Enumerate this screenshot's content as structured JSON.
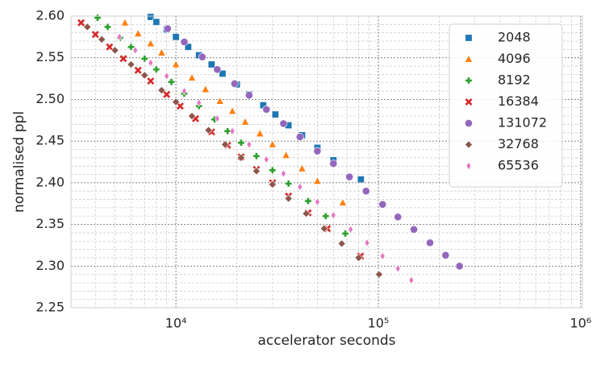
{
  "chart_data": {
    "type": "scatter",
    "xlabel": "accelerator seconds",
    "ylabel": "normalised ppl",
    "xscale": "log",
    "grid": true,
    "legend": "upper right",
    "xlim": [
      3030,
      1020000
    ],
    "xticks": [
      {
        "value": 10000,
        "label": "10⁴"
      },
      {
        "value": 100000,
        "label": "10⁵"
      },
      {
        "value": 1000000,
        "label": "10⁶"
      }
    ],
    "ylim": [
      2.25,
      2.6
    ],
    "yticks": [
      2.25,
      {
        "value": 2.3,
        "label": "2.30"
      },
      2.35,
      {
        "value": 2.4,
        "label": "2.40"
      },
      2.45,
      {
        "value": 2.5,
        "label": "2.50"
      },
      2.55,
      {
        "value": 2.6,
        "label": "2.60"
      }
    ],
    "series": [
      {
        "name": "2048",
        "color": "#1f77b4",
        "marker": "square",
        "x": [
          7500,
          8000,
          9000,
          10000,
          11500,
          13000,
          15000,
          17000,
          20000,
          23000,
          27000,
          31000,
          36000,
          42000,
          50000,
          60000,
          82000
        ],
        "values": [
          2.599,
          2.593,
          2.584,
          2.575,
          2.563,
          2.553,
          2.542,
          2.531,
          2.518,
          2.506,
          2.493,
          2.482,
          2.469,
          2.457,
          2.442,
          2.427,
          2.404
        ]
      },
      {
        "name": "4096",
        "color": "#ff7f0e",
        "marker": "triangle",
        "x": [
          5600,
          6500,
          7500,
          8500,
          10000,
          12000,
          14000,
          16500,
          19000,
          22000,
          26000,
          30000,
          35000,
          42000,
          50000,
          66800
        ],
        "values": [
          2.592,
          2.579,
          2.567,
          2.556,
          2.542,
          2.526,
          2.512,
          2.498,
          2.486,
          2.473,
          2.459,
          2.446,
          2.433,
          2.417,
          2.402,
          2.376
        ]
      },
      {
        "name": "8192",
        "color": "#2ca02c",
        "marker": "plus",
        "x": [
          4100,
          4600,
          5300,
          6000,
          7000,
          8000,
          9500,
          11000,
          13000,
          15500,
          18000,
          21000,
          25000,
          30000,
          36000,
          45000,
          55000,
          68700
        ],
        "values": [
          2.598,
          2.587,
          2.574,
          2.563,
          2.549,
          2.536,
          2.521,
          2.507,
          2.492,
          2.476,
          2.462,
          2.448,
          2.432,
          2.415,
          2.399,
          2.378,
          2.36,
          2.339
        ]
      },
      {
        "name": "16384",
        "color": "#d62728",
        "marker": "x",
        "x": [
          3400,
          4000,
          4700,
          5500,
          6500,
          7500,
          9000,
          10500,
          12500,
          15000,
          18000,
          21000,
          25000,
          30000,
          36000,
          45000,
          56000,
          81700
        ],
        "values": [
          2.592,
          2.578,
          2.563,
          2.549,
          2.535,
          2.522,
          2.506,
          2.492,
          2.477,
          2.461,
          2.445,
          2.431,
          2.416,
          2.4,
          2.384,
          2.364,
          2.345,
          2.312
        ]
      },
      {
        "name": "131072",
        "color": "#9467bd",
        "marker": "circle",
        "x": [
          9100,
          11000,
          13500,
          16000,
          19500,
          23000,
          28000,
          34000,
          41000,
          50000,
          60000,
          72000,
          87000,
          105000,
          125000,
          150000,
          180000,
          215000,
          252000
        ],
        "values": [
          2.585,
          2.569,
          2.551,
          2.536,
          2.519,
          2.505,
          2.488,
          2.471,
          2.455,
          2.438,
          2.423,
          2.407,
          2.39,
          2.374,
          2.359,
          2.344,
          2.328,
          2.313,
          2.3
        ]
      },
      {
        "name": "32768",
        "color": "#8c564b",
        "marker": "diamond",
        "x": [
          3650,
          4300,
          5000,
          6000,
          7000,
          8500,
          10000,
          12000,
          14500,
          17500,
          21000,
          25000,
          30000,
          36000,
          44000,
          54000,
          66000,
          80000,
          100900
        ],
        "values": [
          2.587,
          2.572,
          2.559,
          2.542,
          2.529,
          2.511,
          2.497,
          2.48,
          2.463,
          2.446,
          2.43,
          2.414,
          2.398,
          2.381,
          2.363,
          2.345,
          2.327,
          2.31,
          2.29
        ]
      },
      {
        "name": "65536",
        "color": "#e377c2",
        "marker": "thin-diamond",
        "x": [
          5260,
          6300,
          7500,
          9000,
          11000,
          13000,
          16000,
          19000,
          23000,
          28000,
          34000,
          41000,
          50000,
          60000,
          73000,
          88000,
          105000,
          125000,
          145600
        ],
        "values": [
          2.575,
          2.559,
          2.544,
          2.528,
          2.51,
          2.496,
          2.477,
          2.462,
          2.446,
          2.428,
          2.411,
          2.395,
          2.377,
          2.361,
          2.344,
          2.328,
          2.312,
          2.297,
          2.283
        ]
      }
    ]
  }
}
